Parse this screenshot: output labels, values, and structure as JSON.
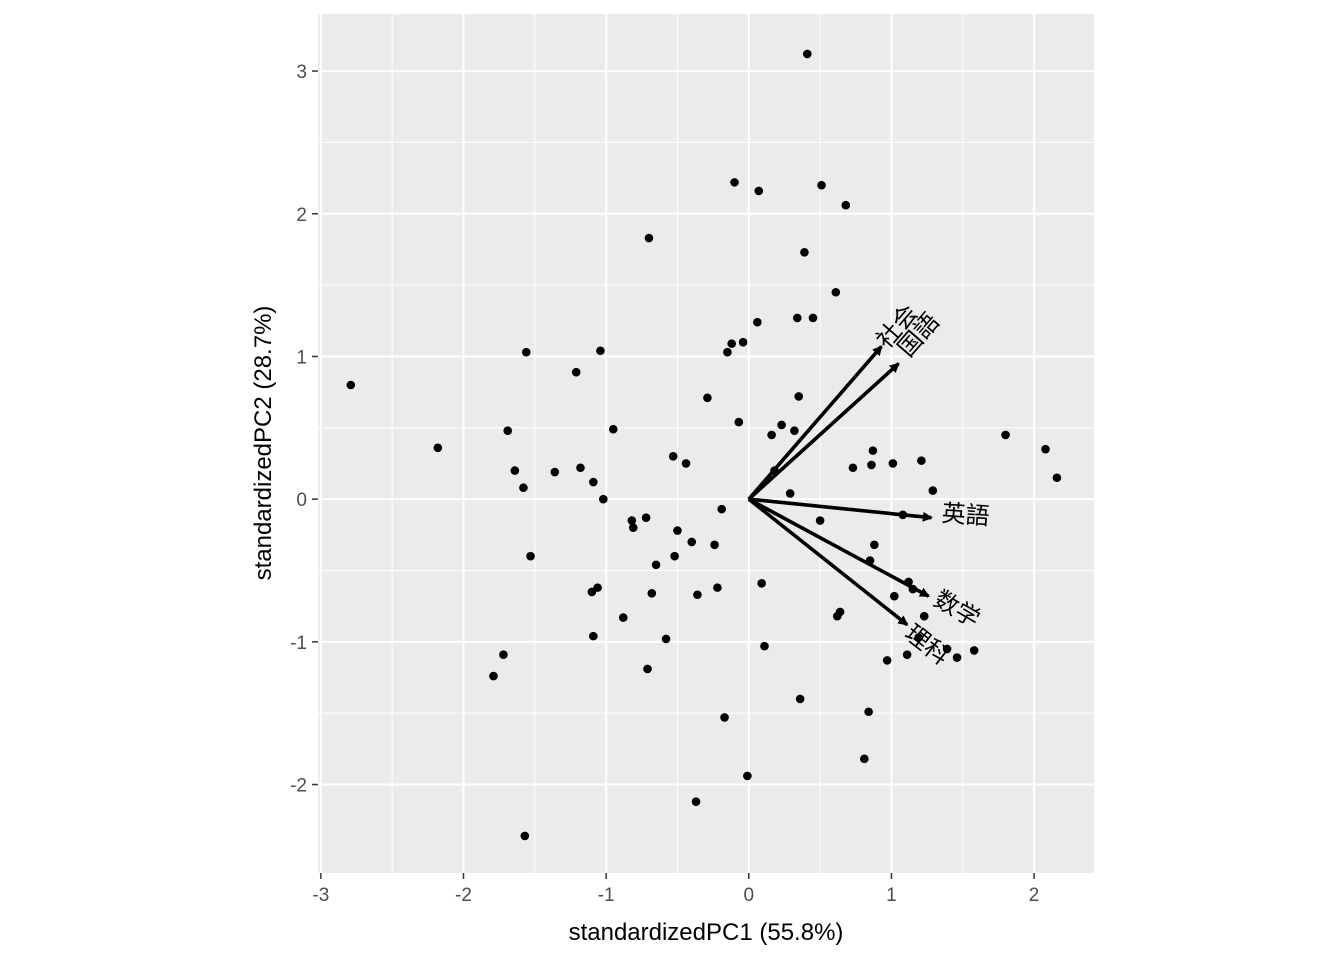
{
  "chart_data": {
    "type": "scatter",
    "xlabel": "standardizedPC1 (55.8%)",
    "ylabel": "standardizedPC2 (28.7%)",
    "xlim": [
      -3.02,
      2.42
    ],
    "ylim": [
      -2.62,
      3.4
    ],
    "x_ticks": [
      -3,
      -2,
      -1,
      0,
      1,
      2
    ],
    "x_tick_labels": [
      "-3",
      "-2",
      "-1",
      "0",
      "1",
      "2"
    ],
    "y_ticks": [
      -2,
      -1,
      0,
      1,
      2,
      3
    ],
    "y_tick_labels": [
      "-2",
      "-1",
      "0",
      "1",
      "2",
      "3"
    ],
    "grid": true,
    "background": "#ebebeb",
    "point_color": "#000000",
    "arrow_color": "#000000",
    "points": [
      {
        "x": -2.79,
        "y": 0.8
      },
      {
        "x": -2.18,
        "y": 0.36
      },
      {
        "x": -1.79,
        "y": -1.24
      },
      {
        "x": -1.72,
        "y": -1.09
      },
      {
        "x": -1.69,
        "y": 0.48
      },
      {
        "x": -1.64,
        "y": 0.2
      },
      {
        "x": -1.58,
        "y": 0.08
      },
      {
        "x": -1.56,
        "y": 1.03
      },
      {
        "x": -1.57,
        "y": -2.36
      },
      {
        "x": -1.53,
        "y": -0.4
      },
      {
        "x": -1.36,
        "y": 0.19
      },
      {
        "x": -1.21,
        "y": 0.89
      },
      {
        "x": -1.18,
        "y": 0.22
      },
      {
        "x": -1.1,
        "y": -0.65
      },
      {
        "x": -1.09,
        "y": 0.12
      },
      {
        "x": -1.09,
        "y": -0.96
      },
      {
        "x": -1.06,
        "y": -0.62
      },
      {
        "x": -1.04,
        "y": 1.04
      },
      {
        "x": -1.02,
        "y": 0.0
      },
      {
        "x": -0.95,
        "y": 0.49
      },
      {
        "x": -0.88,
        "y": -0.83
      },
      {
        "x": -0.82,
        "y": -0.15
      },
      {
        "x": -0.81,
        "y": -0.2
      },
      {
        "x": -0.72,
        "y": -0.13
      },
      {
        "x": -0.71,
        "y": -1.19
      },
      {
        "x": -0.7,
        "y": 1.83
      },
      {
        "x": -0.68,
        "y": -0.66
      },
      {
        "x": -0.65,
        "y": -0.46
      },
      {
        "x": -0.58,
        "y": -0.98
      },
      {
        "x": -0.53,
        "y": 0.3
      },
      {
        "x": -0.52,
        "y": -0.4
      },
      {
        "x": -0.5,
        "y": -0.22
      },
      {
        "x": -0.44,
        "y": 0.25
      },
      {
        "x": -0.4,
        "y": -0.3
      },
      {
        "x": -0.36,
        "y": -0.67
      },
      {
        "x": -0.37,
        "y": -2.12
      },
      {
        "x": -0.29,
        "y": 0.71
      },
      {
        "x": -0.24,
        "y": -0.32
      },
      {
        "x": -0.22,
        "y": -0.62
      },
      {
        "x": -0.19,
        "y": -0.07
      },
      {
        "x": -0.17,
        "y": -1.53
      },
      {
        "x": -0.15,
        "y": 1.03
      },
      {
        "x": -0.12,
        "y": 1.09
      },
      {
        "x": -0.1,
        "y": 2.22
      },
      {
        "x": -0.07,
        "y": 0.54
      },
      {
        "x": -0.04,
        "y": 1.1
      },
      {
        "x": -0.01,
        "y": -1.94
      },
      {
        "x": 0.06,
        "y": 1.24
      },
      {
        "x": 0.07,
        "y": 2.16
      },
      {
        "x": 0.09,
        "y": -0.59
      },
      {
        "x": 0.11,
        "y": -1.03
      },
      {
        "x": 0.16,
        "y": 0.45
      },
      {
        "x": 0.18,
        "y": 0.2
      },
      {
        "x": 0.23,
        "y": 0.52
      },
      {
        "x": 0.29,
        "y": 0.04
      },
      {
        "x": 0.32,
        "y": 0.48
      },
      {
        "x": 0.34,
        "y": 1.27
      },
      {
        "x": 0.35,
        "y": 0.72
      },
      {
        "x": 0.36,
        "y": -1.4
      },
      {
        "x": 0.39,
        "y": 1.73
      },
      {
        "x": 0.41,
        "y": 3.12
      },
      {
        "x": 0.45,
        "y": 1.27
      },
      {
        "x": 0.5,
        "y": -0.15
      },
      {
        "x": 0.51,
        "y": 2.2
      },
      {
        "x": 0.61,
        "y": 1.45
      },
      {
        "x": 0.62,
        "y": -0.82
      },
      {
        "x": 0.64,
        "y": -0.79
      },
      {
        "x": 0.68,
        "y": 2.06
      },
      {
        "x": 0.73,
        "y": 0.22
      },
      {
        "x": 0.81,
        "y": -1.82
      },
      {
        "x": 0.84,
        "y": -1.49
      },
      {
        "x": 0.85,
        "y": -0.43
      },
      {
        "x": 0.86,
        "y": 0.24
      },
      {
        "x": 0.87,
        "y": 0.34
      },
      {
        "x": 0.88,
        "y": -0.32
      },
      {
        "x": 0.97,
        "y": -1.13
      },
      {
        "x": 1.01,
        "y": 0.25
      },
      {
        "x": 1.02,
        "y": -0.68
      },
      {
        "x": 1.08,
        "y": -0.11
      },
      {
        "x": 1.11,
        "y": -1.09
      },
      {
        "x": 1.12,
        "y": -0.58
      },
      {
        "x": 1.15,
        "y": -0.63
      },
      {
        "x": 1.19,
        "y": -0.97
      },
      {
        "x": 1.21,
        "y": 0.27
      },
      {
        "x": 1.23,
        "y": -0.82
      },
      {
        "x": 1.29,
        "y": 0.06
      },
      {
        "x": 1.39,
        "y": -1.05
      },
      {
        "x": 1.46,
        "y": -1.11
      },
      {
        "x": 1.58,
        "y": -1.06
      },
      {
        "x": 1.8,
        "y": 0.45
      },
      {
        "x": 2.08,
        "y": 0.35
      },
      {
        "x": 2.16,
        "y": 0.15
      }
    ],
    "arrows": [
      {
        "name": "社会",
        "x": 0.93,
        "y": 1.07,
        "label_x": 1.04,
        "label_y": 1.21,
        "angle": -49
      },
      {
        "name": "国語",
        "x": 1.05,
        "y": 0.95,
        "label_x": 1.19,
        "label_y": 1.15,
        "angle": -49
      },
      {
        "name": "英語",
        "x": 1.28,
        "y": -0.13,
        "label_x": 1.52,
        "label_y": -0.11,
        "angle": 4
      },
      {
        "name": "数学",
        "x": 1.26,
        "y": -0.68,
        "label_x": 1.46,
        "label_y": -0.77,
        "angle": 30
      },
      {
        "name": "理科",
        "x": 1.11,
        "y": -0.88,
        "label_x": 1.25,
        "label_y": -1.02,
        "angle": 38
      }
    ]
  }
}
